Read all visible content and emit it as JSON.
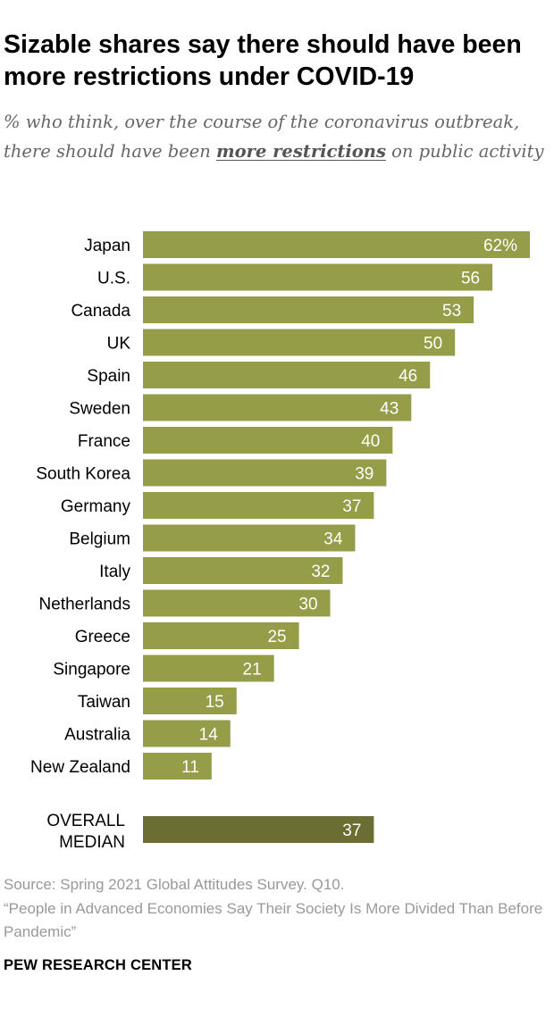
{
  "title": "Sizable shares say there should have been more restrictions under COVID-19",
  "subtitle": {
    "before": "% who think, over the course of the coronavirus outbreak, there should have been ",
    "emphasis": "more restrictions",
    "after": " on public activity"
  },
  "chart_data": {
    "type": "bar",
    "orientation": "horizontal",
    "categories": [
      "Japan",
      "U.S.",
      "Canada",
      "UK",
      "Spain",
      "Sweden",
      "France",
      "South Korea",
      "Germany",
      "Belgium",
      "Italy",
      "Netherlands",
      "Greece",
      "Singapore",
      "Taiwan",
      "Australia",
      "New Zealand"
    ],
    "values": [
      62,
      56,
      53,
      50,
      46,
      43,
      40,
      39,
      37,
      34,
      32,
      30,
      25,
      21,
      15,
      14,
      11
    ],
    "value_labels": [
      "62%",
      "56",
      "53",
      "50",
      "46",
      "43",
      "40",
      "39",
      "37",
      "34",
      "32",
      "30",
      "25",
      "21",
      "15",
      "14",
      "11"
    ],
    "summary": {
      "label_lines": [
        "OVERALL",
        "MEDIAN"
      ],
      "value": 37,
      "value_label": "37"
    },
    "xlim": [
      0,
      62
    ],
    "grid": false,
    "bar_color": "#959d48",
    "summary_color": "#6b6d33",
    "label_color": "#ffffff"
  },
  "source": "Source: Spring 2021 Global Attitudes Survey. Q10.\n“People in Advanced Economies Say Their Society Is More Divided Than Before Pandemic”",
  "brand": "PEW RESEARCH CENTER"
}
